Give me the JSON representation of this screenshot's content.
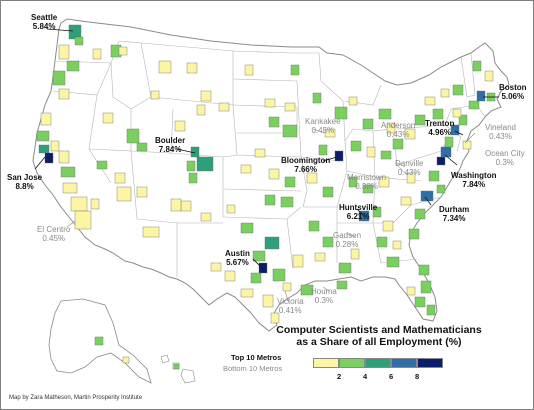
{
  "map": {
    "title_line1": "Computer Scientists and Mathematicians",
    "title_line2": "as a Share of all Employment (%)",
    "credit": "Map by Zara Matheson, Martin Prosperity Institute",
    "colors": {
      "ocean": "#ffffff",
      "land": "#ffffff",
      "border": "#9a9a9a",
      "class_1": "#fbf5a4",
      "class_2": "#7ad05f",
      "class_3": "#2e9f7a",
      "class_4": "#2f6fa6",
      "class_5": "#0c1e6b"
    },
    "legend": {
      "top_label": "Top 10 Metros",
      "bottom_label": "Bottom 10 Metros",
      "ticks": [
        "2",
        "4",
        "6",
        "8"
      ]
    },
    "top_metros": [
      {
        "name": "Seattle",
        "value": "5.84%"
      },
      {
        "name": "San Jose",
        "value": "8.8%"
      },
      {
        "name": "Boulder",
        "value": "7.84%"
      },
      {
        "name": "Bloomington",
        "value": "7.66%"
      },
      {
        "name": "Boston",
        "value": "5.06%"
      },
      {
        "name": "Trenton",
        "value": "4.96%"
      },
      {
        "name": "Washington",
        "value": "7.84%"
      },
      {
        "name": "Durham",
        "value": "7.34%"
      },
      {
        "name": "Huntsville",
        "value": "6.21%"
      },
      {
        "name": "Austin",
        "value": "5.67%"
      }
    ],
    "bottom_metros": [
      {
        "name": "El Centro",
        "value": "0.45%"
      },
      {
        "name": "Kankakee",
        "value": "0.45%"
      },
      {
        "name": "Anderson",
        "value": "0.43%"
      },
      {
        "name": "Danville",
        "value": "0.43%"
      },
      {
        "name": "Morristown",
        "value": "0.38%"
      },
      {
        "name": "Vineland",
        "value": "0.43%"
      },
      {
        "name": "Ocean City",
        "value": "0.3%"
      },
      {
        "name": "Gadsen",
        "value": "0.28%"
      },
      {
        "name": "Houma",
        "value": "0.3%"
      },
      {
        "name": "Victoria",
        "value": "0.41%"
      }
    ]
  }
}
